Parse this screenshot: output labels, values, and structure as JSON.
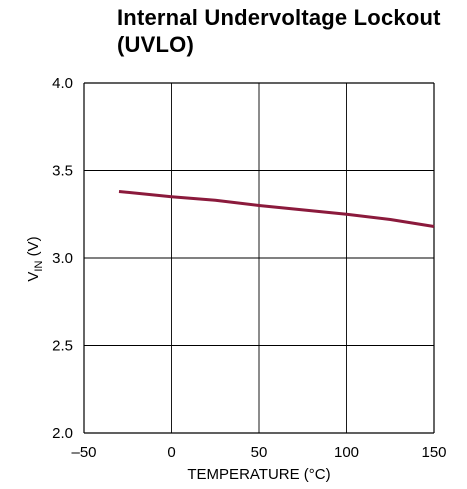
{
  "chart_data": {
    "type": "line",
    "title": "Internal Undervoltage Lockout (UVLO)",
    "xlabel": "TEMPERATURE (°C)",
    "ylabel": {
      "main": "V",
      "sub": "IN",
      "unit": " (V)"
    },
    "xlim": [
      -50,
      150
    ],
    "ylim": [
      2.0,
      4.0
    ],
    "x_ticks": [
      -50,
      0,
      50,
      100,
      150
    ],
    "x_tick_labels": [
      "–50",
      "0",
      "50",
      "100",
      "150"
    ],
    "y_ticks": [
      2.0,
      2.5,
      3.0,
      3.5,
      4.0
    ],
    "y_tick_labels": [
      "2.0",
      "2.5",
      "3.0",
      "3.5",
      "4.0"
    ],
    "grid": true,
    "series": [
      {
        "color": "#8b1a3c",
        "points": [
          {
            "x": -30,
            "y": 3.38
          },
          {
            "x": 0,
            "y": 3.35
          },
          {
            "x": 25,
            "y": 3.33
          },
          {
            "x": 50,
            "y": 3.3
          },
          {
            "x": 100,
            "y": 3.25
          },
          {
            "x": 125,
            "y": 3.22
          },
          {
            "x": 150,
            "y": 3.18
          }
        ]
      }
    ]
  }
}
